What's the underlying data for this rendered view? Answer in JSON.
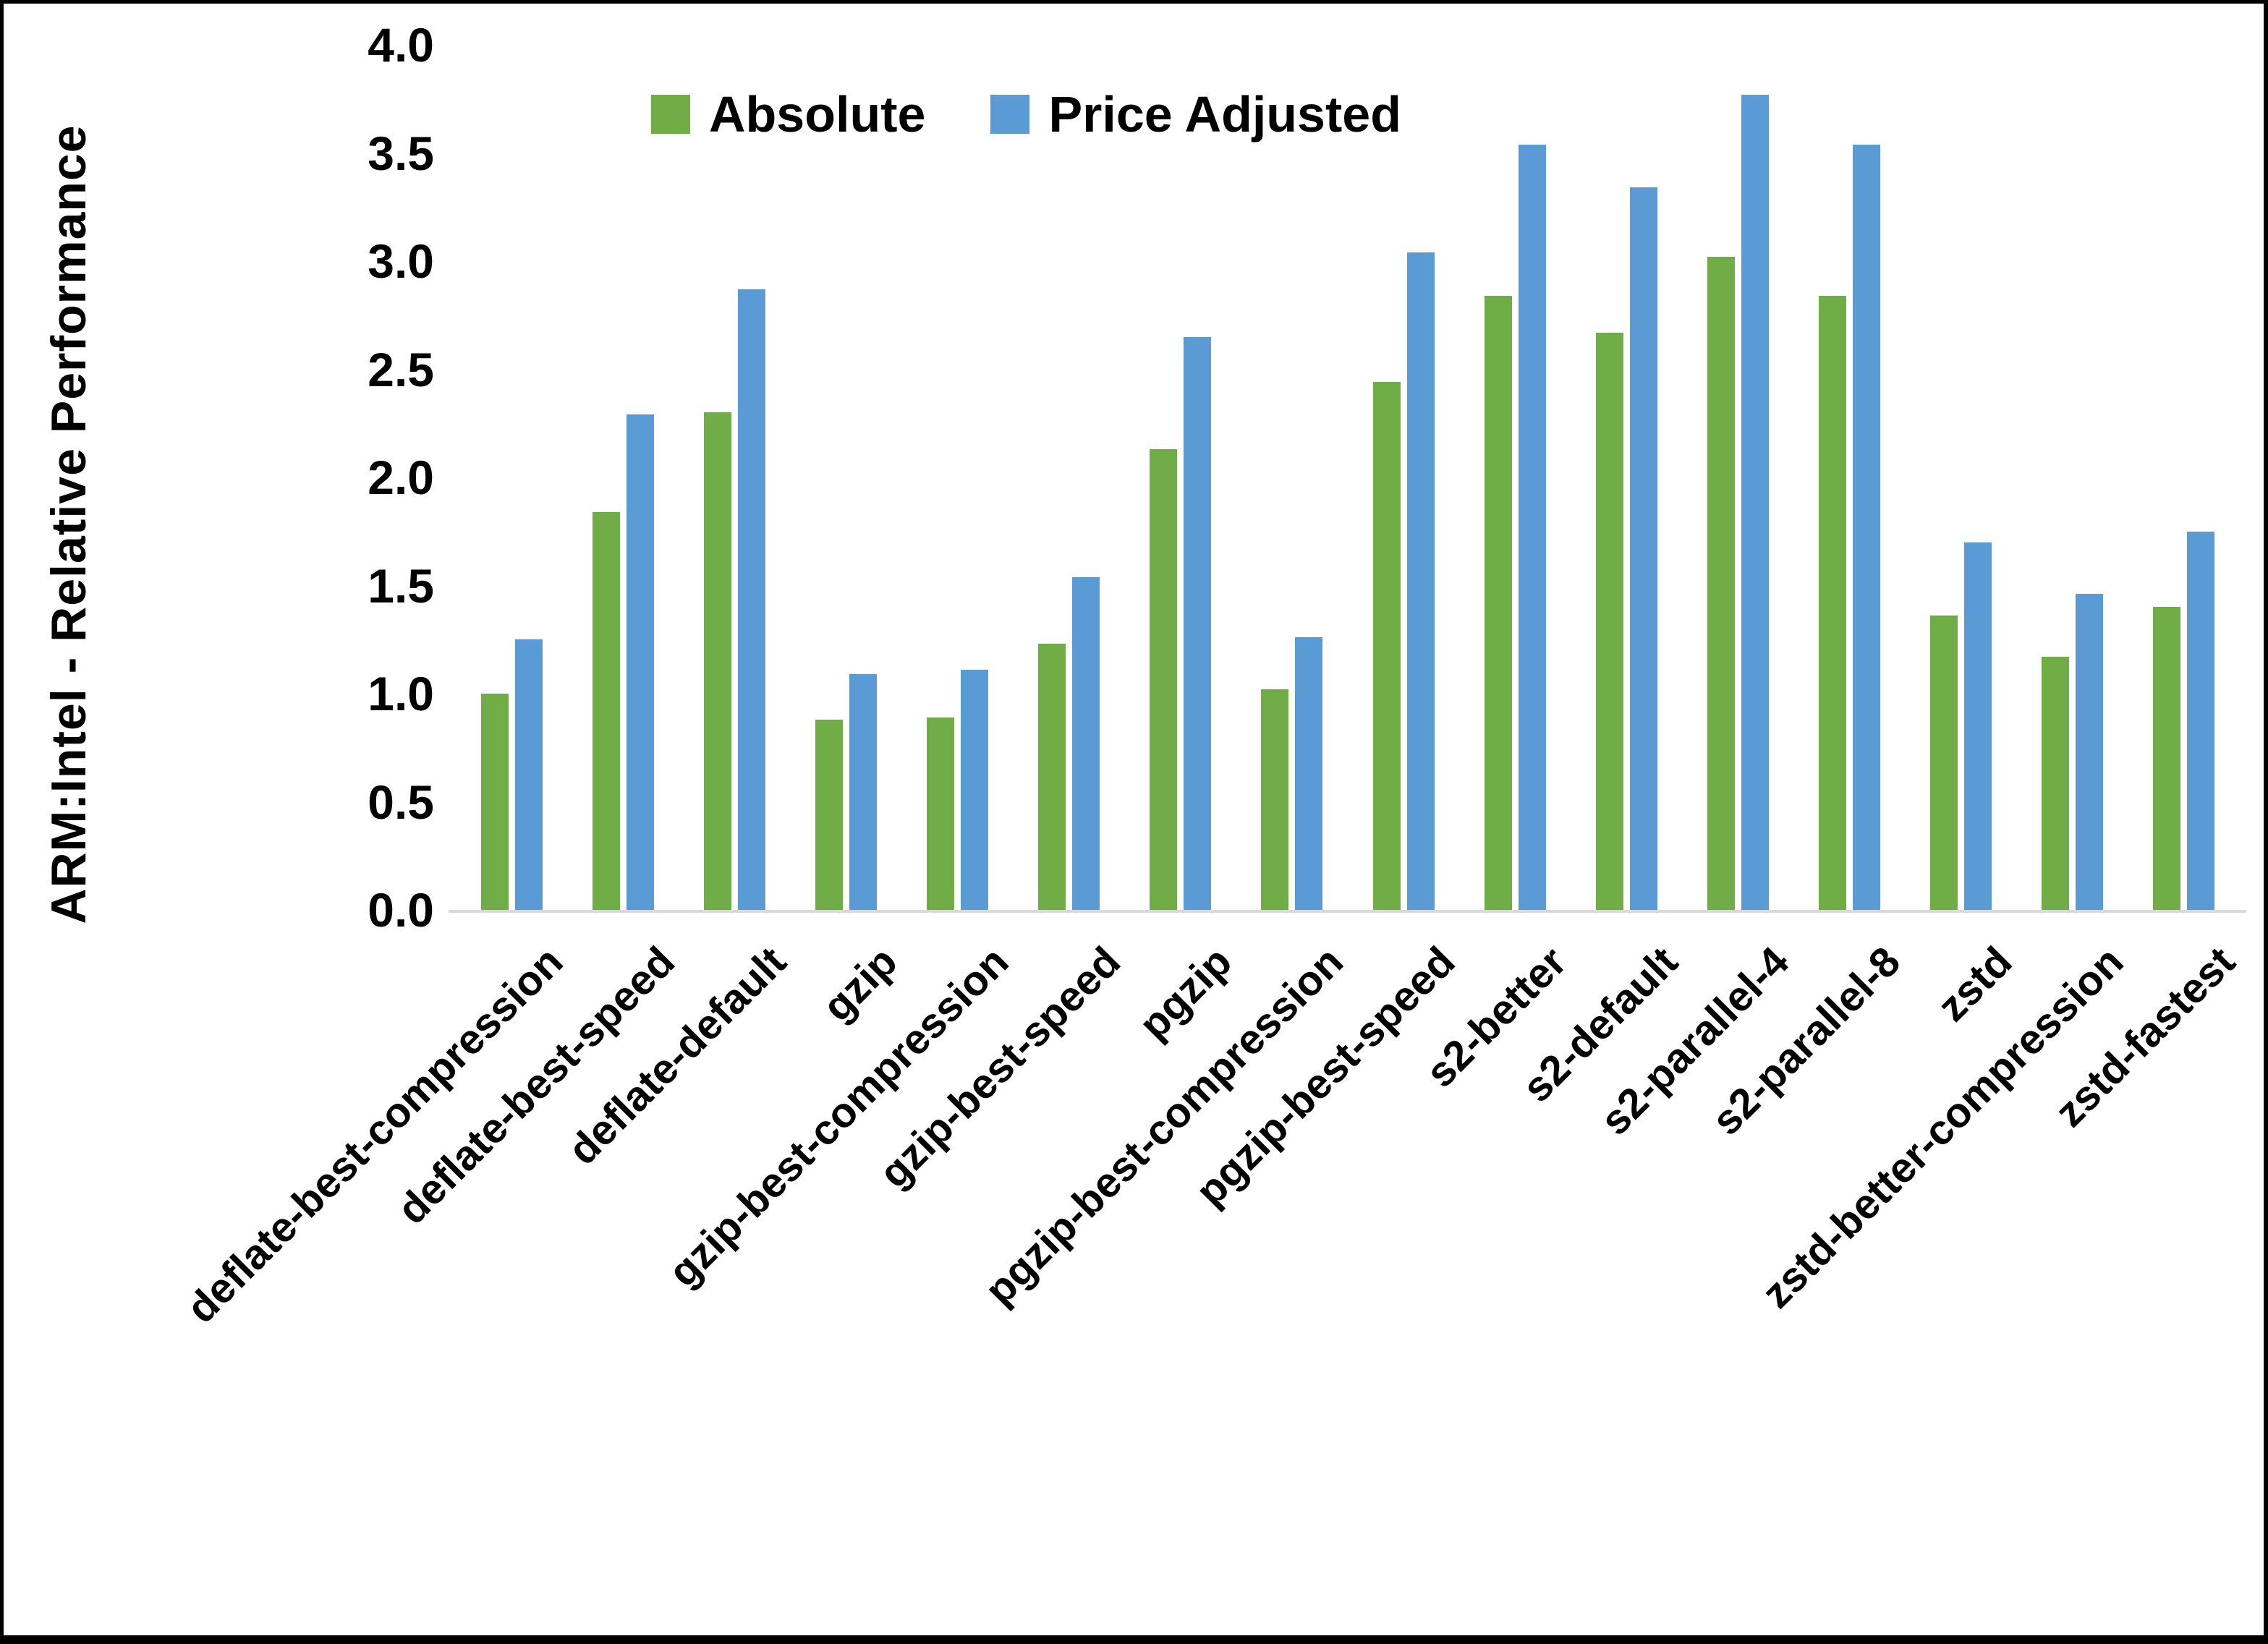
{
  "accent_colors": {
    "absolute_green": "#70AD47",
    "price_adjusted_blue": "#5B9BD5",
    "axis_line_gray": "#D9D9D9",
    "text_black": "#000000",
    "frame_black": "#000000"
  },
  "chart_data": {
    "type": "bar",
    "title": "",
    "ylabel": "ARM:Intel - Relative Performance",
    "xlabel": "",
    "ylim": [
      0.0,
      4.0
    ],
    "ytick_interval": 0.5,
    "yticks": [
      "0.0",
      "0.5",
      "1.0",
      "1.5",
      "2.0",
      "2.5",
      "3.0",
      "3.5",
      "4.0"
    ],
    "grid": "off",
    "legend_position": "top-center",
    "categories": [
      "deflate-best-compression",
      "deflate-best-speed",
      "deflate-default",
      "gzip",
      "gzip-best-compression",
      "gzip-best-speed",
      "pgzip",
      "pgzip-best-compression",
      "pgzip-best-speed",
      "s2-better",
      "s2-default",
      "s2-parallel-4",
      "s2-parallel-8",
      "zstd",
      "zstd-better-compression",
      "zstd-fastest"
    ],
    "series": [
      {
        "name": "Absolute",
        "color": "#70AD47",
        "values": [
          1.0,
          1.84,
          2.3,
          0.88,
          0.89,
          1.23,
          2.13,
          1.02,
          2.44,
          2.84,
          2.67,
          3.02,
          2.84,
          1.36,
          1.17,
          1.4
        ]
      },
      {
        "name": "Price Adjusted",
        "color": "#5B9BD5",
        "values": [
          1.25,
          2.29,
          2.87,
          1.09,
          1.11,
          1.54,
          2.65,
          1.26,
          3.04,
          3.54,
          3.34,
          3.77,
          3.54,
          1.7,
          1.46,
          1.75
        ]
      }
    ]
  }
}
